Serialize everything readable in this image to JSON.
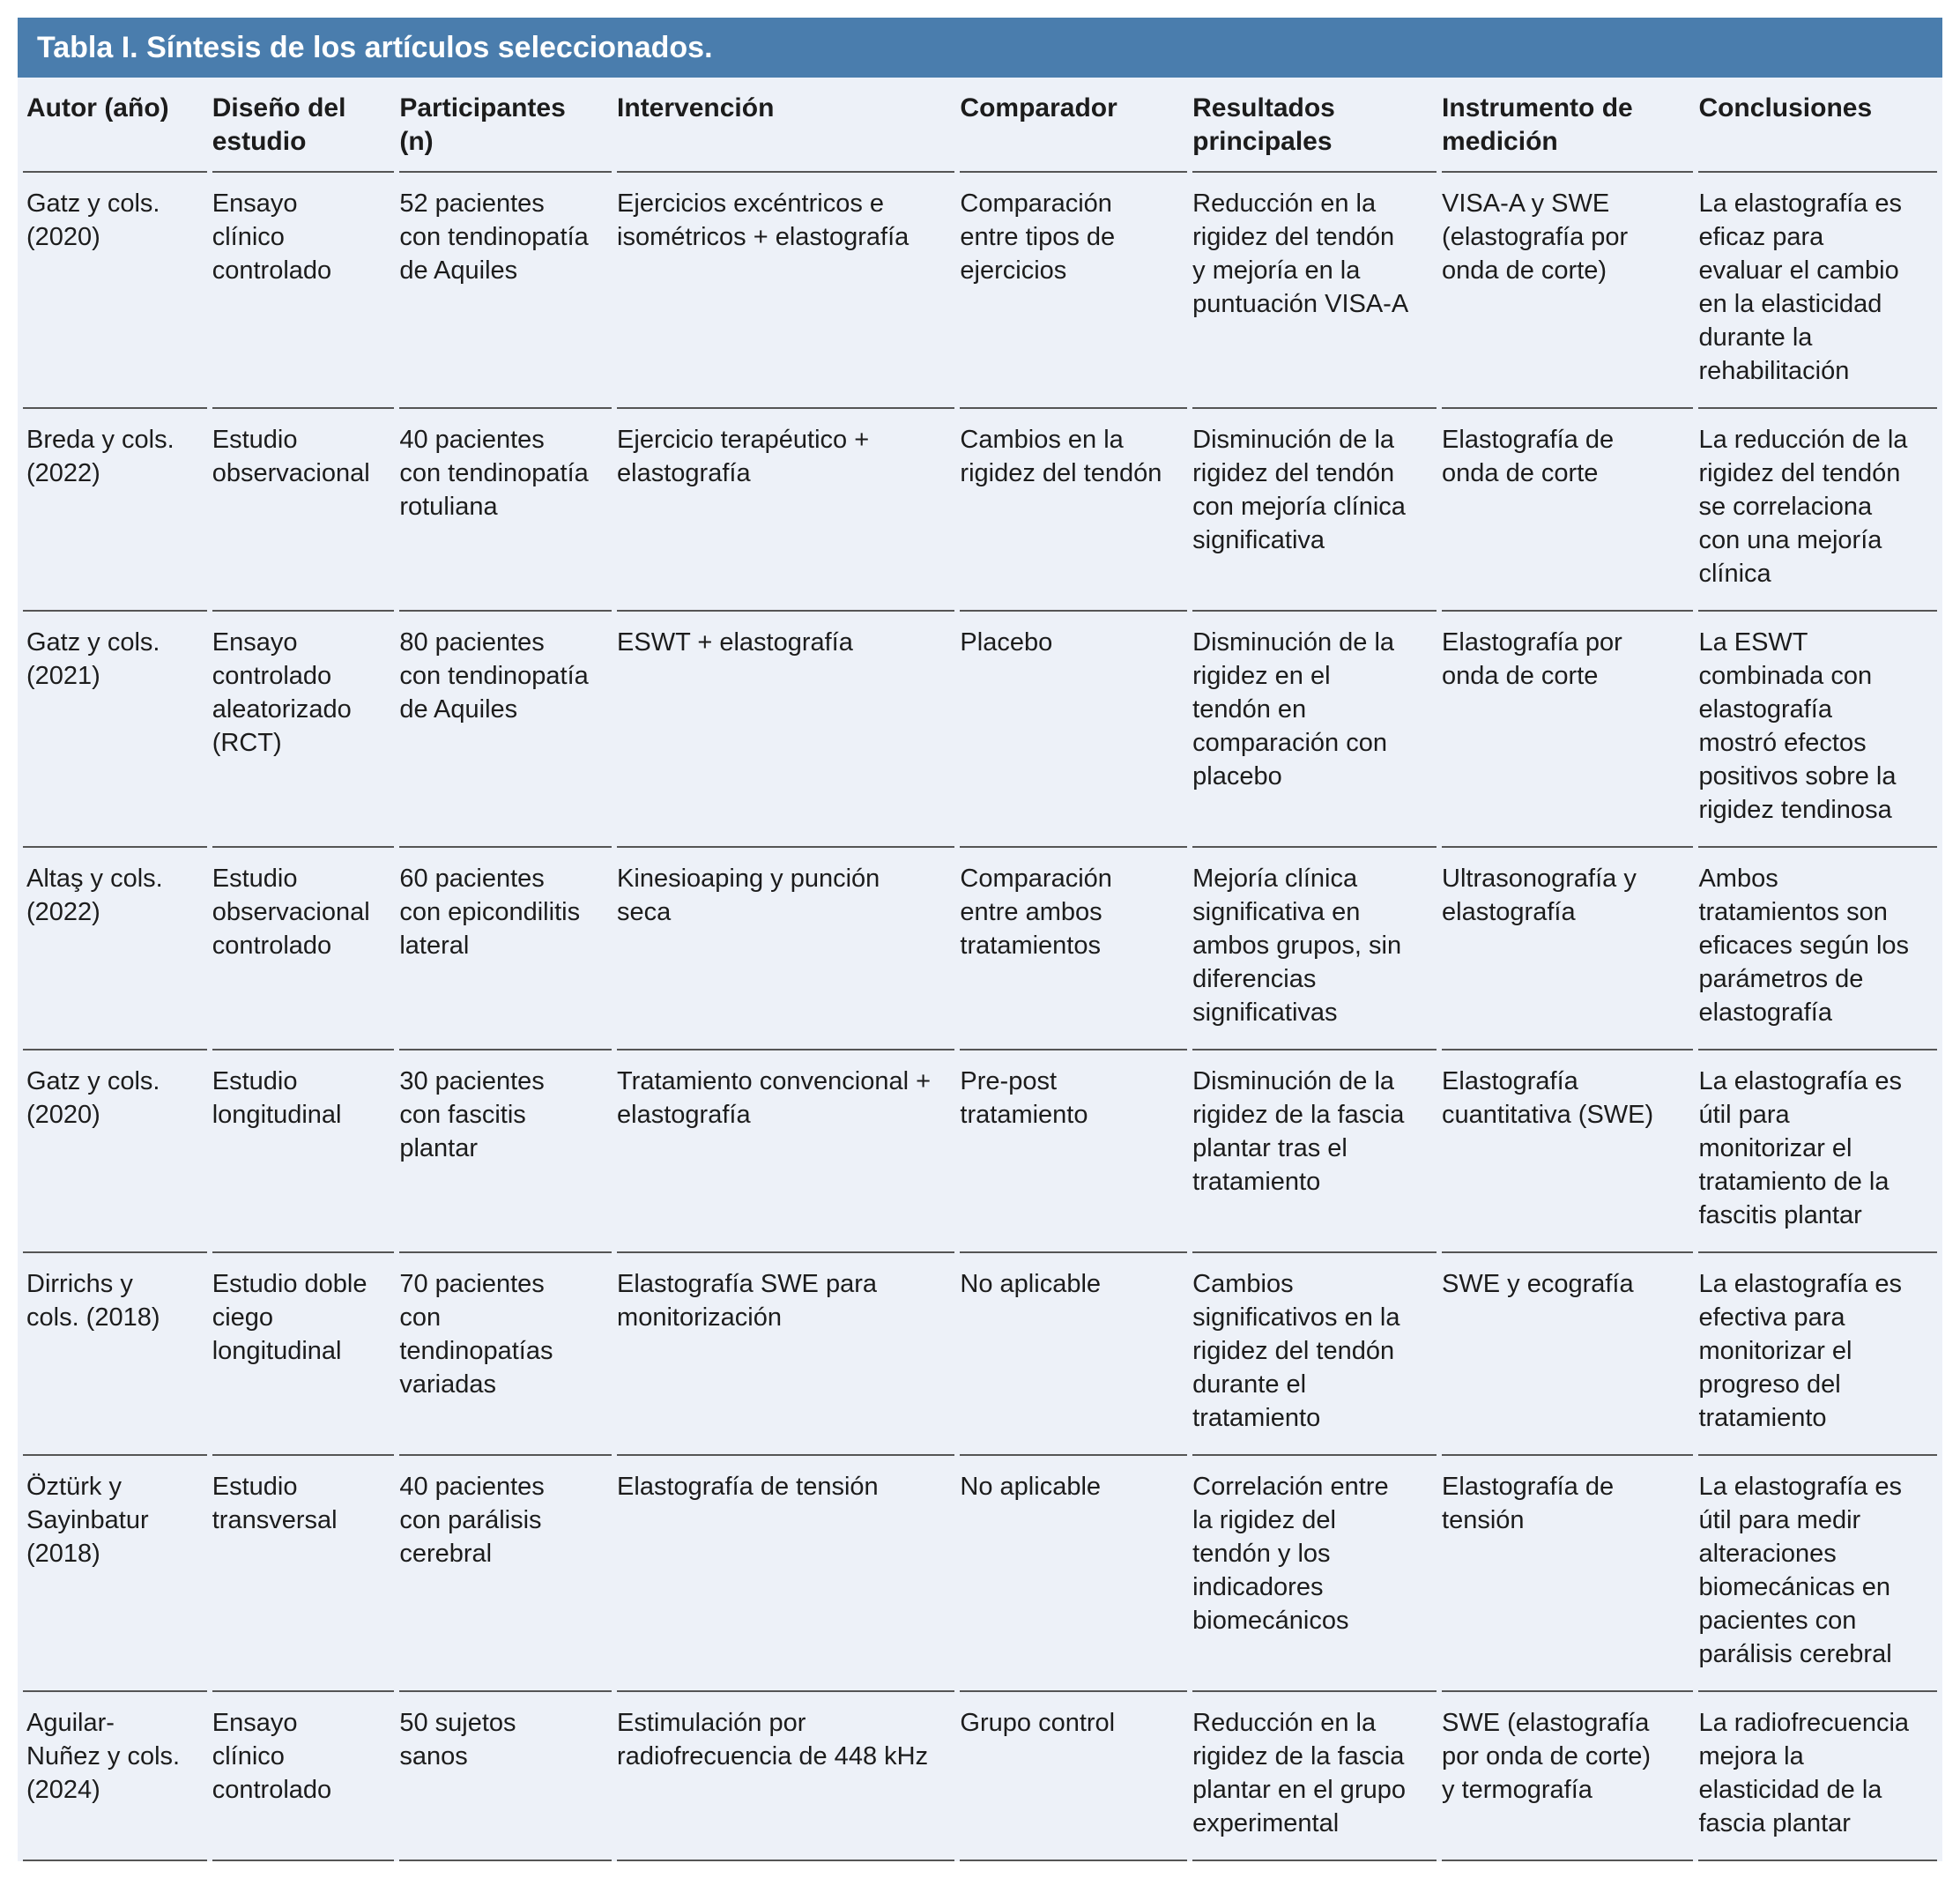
{
  "colors": {
    "title_bar_bg": "#4a7dad",
    "body_bg": "#edf1f8",
    "row_line": "#555555",
    "title_text": "#ffffff",
    "body_text": "#1c1c1c"
  },
  "table": {
    "title": "Tabla I. Síntesis de los artículos seleccionados.",
    "columns": [
      "Autor (año)",
      "Diseño del estudio",
      "Participantes (n)",
      "Intervención",
      "Comparador",
      "Resultados principales",
      "Instrumento de medición",
      "Conclusiones"
    ],
    "rows": [
      [
        "Gatz y cols. (2020)",
        "Ensayo clínico controlado",
        "52 pacientes con tendinopatía de Aquiles",
        "Ejercicios excéntricos e isométricos + elastografía",
        "Comparación entre tipos de ejercicios",
        "Reducción en la rigidez del tendón y mejoría en la puntuación VISA-A",
        "VISA-A y SWE (elastografía por onda de corte)",
        "La elastografía es eficaz para evaluar el cambio en la elasticidad durante la rehabilitación"
      ],
      [
        "Breda y cols. (2022)",
        "Estudio observacional",
        "40 pacientes con tendinopatía rotuliana",
        "Ejercicio terapéutico + elastografía",
        "Cambios en la rigidez del tendón",
        "Disminución de la rigidez del tendón con mejoría clínica significativa",
        "Elastografía de onda de corte",
        "La reducción de la rigidez del tendón se correlaciona con una mejoría clínica"
      ],
      [
        "Gatz y cols. (2021)",
        "Ensayo controlado aleatorizado (RCT)",
        "80 pacientes con tendinopatía de Aquiles",
        "ESWT + elastografía",
        "Placebo",
        "Disminución de la rigidez en el tendón en comparación con placebo",
        "Elastografía por onda de corte",
        "La ESWT combinada con elastografía mostró efectos positivos sobre la rigidez tendinosa"
      ],
      [
        "Altaş y cols. (2022)",
        "Estudio observacional controlado",
        "60 pacientes con epicondilitis lateral",
        "Kinesioaping y punción seca",
        "Comparación entre ambos tratamientos",
        "Mejoría clínica significativa en ambos grupos, sin diferencias significativas",
        "Ultrasonografía y elastografía",
        "Ambos tratamientos son eficaces según los parámetros de elastografía"
      ],
      [
        "Gatz y cols. (2020)",
        "Estudio longitudinal",
        "30 pacientes con fascitis plantar",
        "Tratamiento convencional + elastografía",
        "Pre-post tratamiento",
        "Disminución de la rigidez de la fascia plantar tras el tratamiento",
        "Elastografía cuantitativa (SWE)",
        "La elastografía es útil para monitorizar el tratamiento de la fascitis plantar"
      ],
      [
        "Dirrichs y cols. (2018)",
        "Estudio doble ciego longitudinal",
        "70 pacientes con tendinopatías variadas",
        "Elastografía SWE para monitorización",
        "No aplicable",
        "Cambios significativos en la rigidez del tendón durante el tratamiento",
        "SWE y ecografía",
        "La elastografía es efectiva para monitorizar el progreso del tratamiento"
      ],
      [
        "Öztürk y Sayinbatur (2018)",
        "Estudio transversal",
        "40 pacientes con parálisis cerebral",
        "Elastografía de tensión",
        "No aplicable",
        "Correlación entre la rigidez del tendón y los indicadores biomecánicos",
        "Elastografía de tensión",
        "La elastografía es útil para medir alteraciones biomecánicas en pacientes con parálisis cerebral"
      ],
      [
        "Aguilar-Nuñez y cols. (2024)",
        "Ensayo clínico controlado",
        "50 sujetos sanos",
        "Estimulación por radiofrecuencia de 448 kHz",
        "Grupo control",
        "Reducción en la rigidez de la fascia plantar en el grupo experimental",
        "SWE (elastografía por onda de corte) y termografía",
        "La radiofrecuencia mejora la elasticidad de la fascia plantar"
      ]
    ]
  }
}
